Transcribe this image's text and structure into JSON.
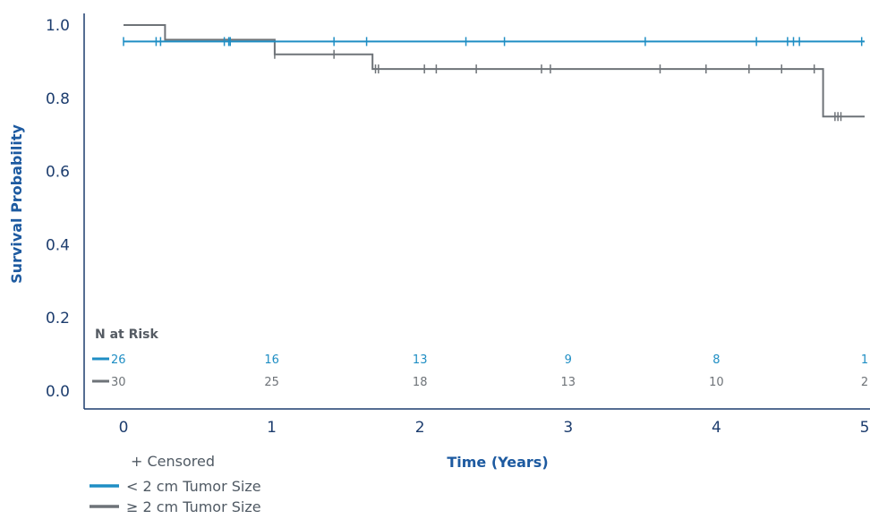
{
  "chart_data": {
    "type": "line",
    "subtype": "kaplan-meier-step",
    "xlabel": "Time (Years)",
    "ylabel": "Survival Probability",
    "xlim": [
      -0.2,
      5
    ],
    "ylim": [
      0,
      1
    ],
    "x_ticks": [
      "0",
      "1",
      "2",
      "3",
      "4",
      "5"
    ],
    "y_ticks": [
      "0.0",
      "0.2",
      "0.4",
      "0.6",
      "0.8",
      "1.0"
    ],
    "grid": false,
    "series": [
      {
        "name": "< 2 cm Tumor Size",
        "color": "#1f8ec4",
        "steps": [
          [
            0,
            0.955
          ],
          [
            5,
            0.955
          ]
        ],
        "censored": [
          0.0,
          0.22,
          0.25,
          0.68,
          0.71,
          0.72,
          1.42,
          1.64,
          2.31,
          2.57,
          3.52,
          4.27,
          4.48,
          4.52,
          4.56,
          4.98
        ]
      },
      {
        "name": "≥ 2 cm Tumor Size",
        "color": "#6e7378",
        "steps": [
          [
            0,
            1.0
          ],
          [
            0.28,
            1.0
          ],
          [
            0.28,
            0.96
          ],
          [
            1.02,
            0.96
          ],
          [
            1.02,
            0.92
          ],
          [
            1.68,
            0.92
          ],
          [
            1.68,
            0.88
          ],
          [
            4.72,
            0.88
          ],
          [
            4.72,
            0.75
          ],
          [
            5,
            0.75
          ]
        ],
        "censored": [
          1.02,
          1.42,
          1.7,
          1.72,
          2.03,
          2.11,
          2.38,
          2.82,
          2.88,
          3.62,
          3.93,
          4.22,
          4.44,
          4.66,
          4.8,
          4.82,
          4.84
        ]
      }
    ],
    "risk_table": {
      "title": "N at Risk",
      "times": [
        0,
        1,
        2,
        3,
        4,
        5
      ],
      "rows": [
        {
          "color": "#1f8ec4",
          "values": [
            "26",
            "16",
            "13",
            "9",
            "8",
            "1"
          ]
        },
        {
          "color": "#6e7378",
          "values": [
            "30",
            "25",
            "18",
            "13",
            "10",
            "2"
          ]
        }
      ]
    },
    "legend": {
      "position": "bottom-left",
      "censored_label": "+ Censored",
      "entries": [
        {
          "label": "< 2 cm Tumor Size",
          "color": "#1f8ec4"
        },
        {
          "label": "≥ 2 cm Tumor Size",
          "color": "#6e7378"
        }
      ]
    },
    "axis_color": "#1d3d6e"
  }
}
